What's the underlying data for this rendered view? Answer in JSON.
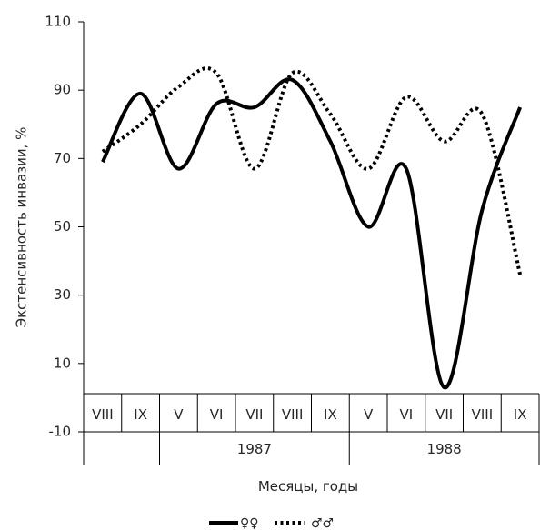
{
  "chart_data": {
    "type": "line",
    "ylabel": "Экстенсивность инвазии, %",
    "xlabel": "Месяцы, годы",
    "ylim": [
      -10,
      110
    ],
    "yticks": [
      -10,
      10,
      30,
      50,
      70,
      90,
      110
    ],
    "categories": [
      "VIII",
      "IX",
      "V",
      "VI",
      "VII",
      "VIII",
      "IX",
      "V",
      "VI",
      "VII",
      "VIII",
      "IX"
    ],
    "groups": [
      {
        "label": "",
        "span": [
          0,
          1
        ]
      },
      {
        "label": "1987",
        "span": [
          2,
          6
        ]
      },
      {
        "label": "1988",
        "span": [
          7,
          11
        ]
      }
    ],
    "series": [
      {
        "name": "♀♀",
        "style": "solid",
        "color": "#000000",
        "values": [
          69,
          89,
          67,
          86,
          85,
          93,
          75,
          50,
          67,
          3,
          55,
          85
        ]
      },
      {
        "name": "♂♂",
        "style": "dotted",
        "color": "#000000",
        "values": [
          72,
          80,
          91,
          95,
          67,
          95,
          83,
          67,
          88,
          75,
          83,
          36
        ]
      }
    ],
    "legend_position": "bottom-center",
    "grid": false
  }
}
